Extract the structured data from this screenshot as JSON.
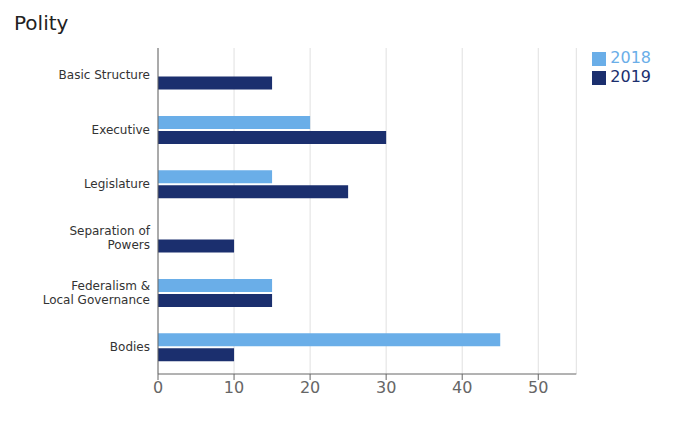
{
  "chart_data": {
    "type": "bar",
    "title": "Polity",
    "orientation": "horizontal",
    "categories": [
      "Bodies",
      "Federalism &\nLocal Governance",
      "Separation of\nPowers",
      "Legislature",
      "Executive",
      "Basic Structure"
    ],
    "series": [
      {
        "name": "2018",
        "color": "#6aaee8",
        "values": [
          45,
          15,
          0,
          15,
          20,
          0
        ]
      },
      {
        "name": "2019",
        "color": "#1b2f6e",
        "values": [
          10,
          15,
          10,
          25,
          30,
          15
        ]
      }
    ],
    "xlim": [
      0,
      55
    ],
    "xticks": [
      0,
      10,
      20,
      30,
      40,
      50
    ],
    "grid": true,
    "legend": "upper right"
  }
}
